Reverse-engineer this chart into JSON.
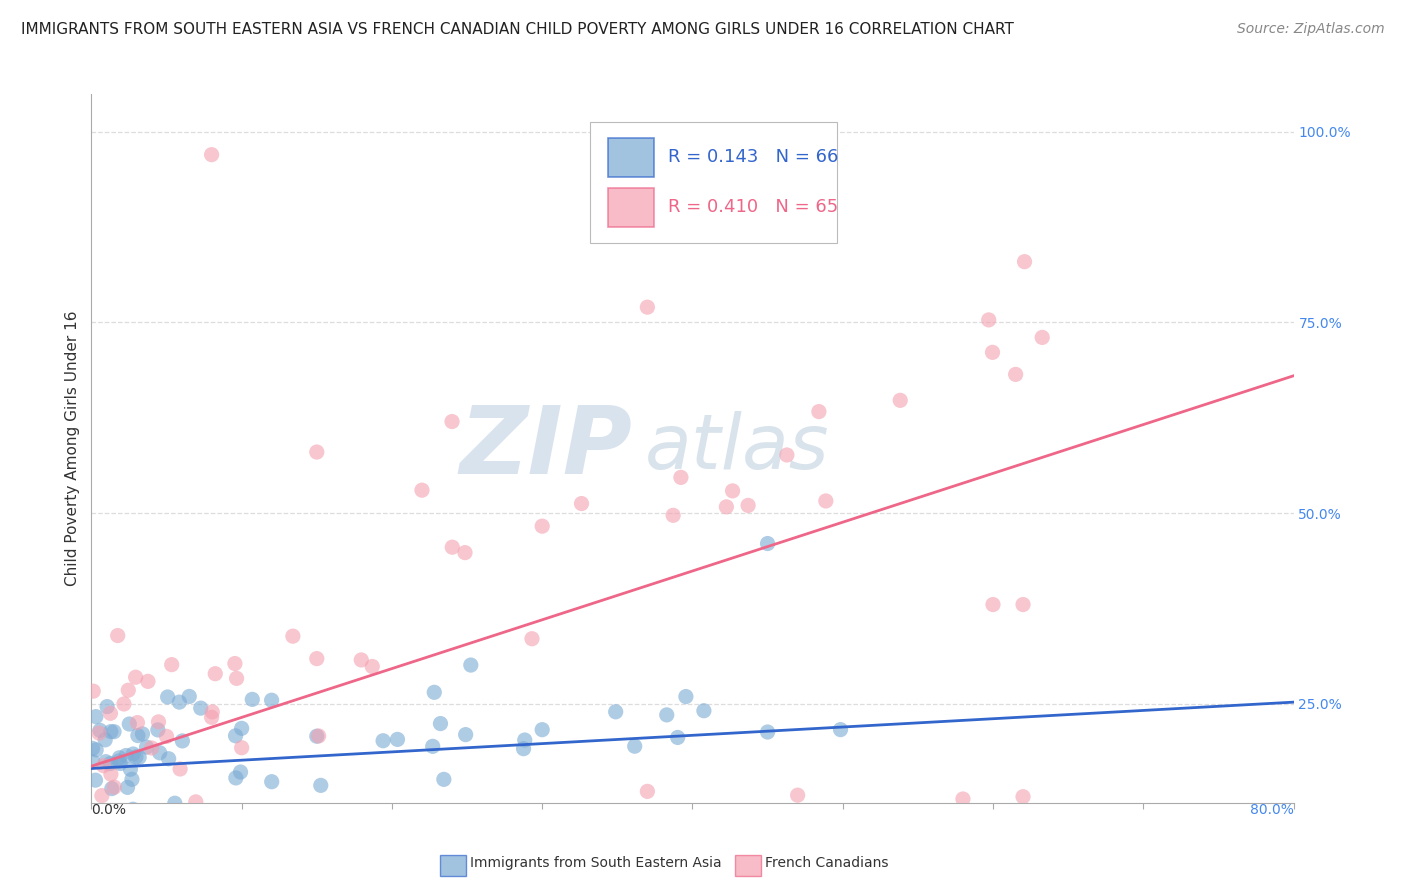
{
  "title": "IMMIGRANTS FROM SOUTH EASTERN ASIA VS FRENCH CANADIAN CHILD POVERTY AMONG GIRLS UNDER 16 CORRELATION CHART",
  "source": "Source: ZipAtlas.com",
  "ylabel": "Child Poverty Among Girls Under 16",
  "legend_blue_r": "R = 0.143",
  "legend_blue_n": "N = 66",
  "legend_pink_r": "R = 0.410",
  "legend_pink_n": "N = 65",
  "legend_blue_label": "Immigrants from South Eastern Asia",
  "legend_pink_label": "French Canadians",
  "right_ytick_labels": [
    "100.0%",
    "75.0%",
    "50.0%",
    "25.0%"
  ],
  "right_ytick_vals": [
    1.0,
    0.75,
    0.5,
    0.25
  ],
  "xmin": 0.0,
  "xmax": 0.8,
  "ymin": 0.12,
  "ymax": 1.05,
  "blue_scatter_color": "#7BAAD4",
  "pink_scatter_color": "#F4A0B0",
  "blue_line_color": "#3366CC",
  "pink_line_color": "#EE6688",
  "watermark_zip_color": "#C8D8E8",
  "watermark_atlas_color": "#C8D8E8",
  "background_color": "#FFFFFF",
  "title_fontsize": 11,
  "source_fontsize": 10,
  "ylabel_fontsize": 11,
  "tick_fontsize": 10,
  "legend_fontsize": 13,
  "scatter_alpha": 0.6,
  "scatter_size": 120,
  "grid_color": "#DDDDDD",
  "grid_linestyle": "--"
}
